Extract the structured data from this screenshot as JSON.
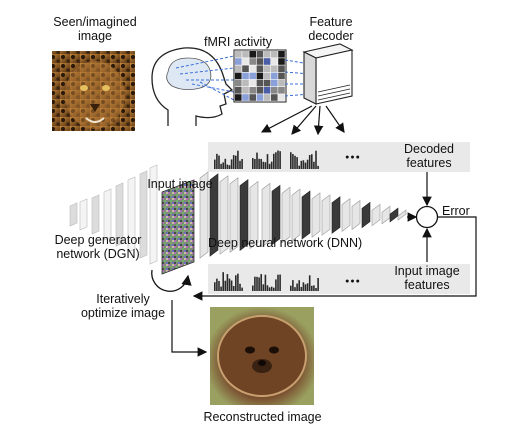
{
  "labels": {
    "seen_image": [
      "Seen/imagined",
      "image"
    ],
    "fmri": "fMRI activity",
    "feature_decoder": [
      "Feature",
      "decoder"
    ],
    "decoded_features": [
      "Decoded",
      "features"
    ],
    "input_image": "Input image",
    "error": "Error",
    "dgn": [
      "Deep generator",
      "network (DGN)"
    ],
    "dnn": "Deep neural network (DNN)",
    "input_image_features": [
      "Input image",
      "features"
    ],
    "optimize": [
      "Iteratively",
      "optimize image"
    ],
    "reconstructed": "Reconstructed image",
    "ellipsis": "●●●"
  },
  "icons": [
    "leopard-photo",
    "head-icon",
    "brain-icon",
    "voxel-grid-icon",
    "server-icon",
    "noise-image",
    "reconstructed-photo",
    "histogram-icon",
    "error-node-icon"
  ],
  "colors": {
    "band": "#e9e9e9",
    "layer_dark": "#3a3a3a",
    "layer_light": "#e6e6e6",
    "dashed_line": "#3a6fd8"
  }
}
